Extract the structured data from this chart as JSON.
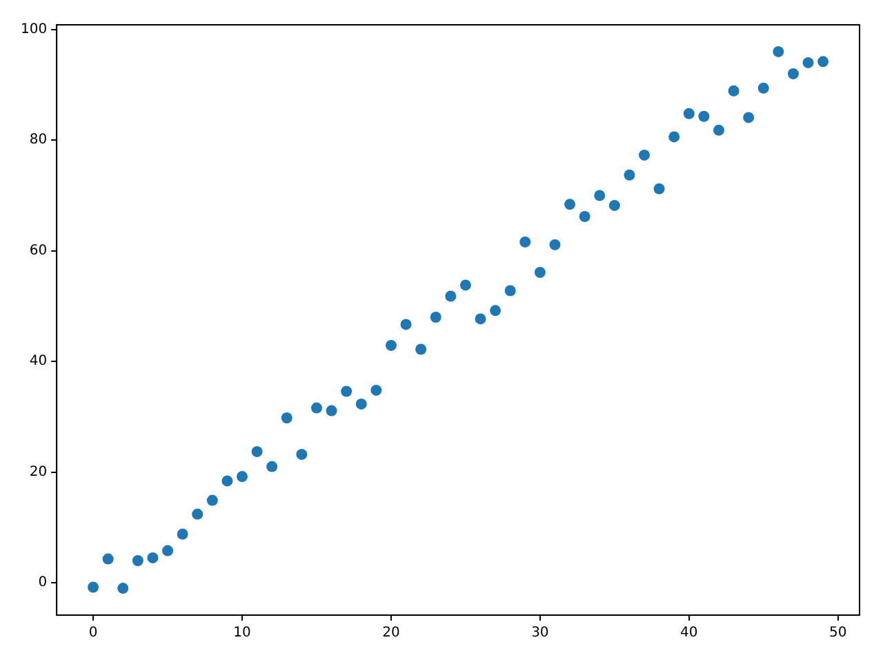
{
  "chart_data": {
    "type": "scatter",
    "x": [
      0,
      1,
      2,
      3,
      4,
      5,
      6,
      7,
      8,
      9,
      10,
      11,
      12,
      13,
      14,
      15,
      16,
      17,
      18,
      19,
      20,
      21,
      22,
      23,
      24,
      25,
      26,
      27,
      28,
      29,
      30,
      31,
      32,
      33,
      34,
      35,
      36,
      37,
      38,
      39,
      40,
      41,
      42,
      43,
      44,
      45,
      46,
      47,
      48,
      49
    ],
    "series": [
      {
        "color": "#1f77b4",
        "values": [
          -0.8,
          4.3,
          -1,
          4,
          4.5,
          5.8,
          8.8,
          12.4,
          14.9,
          18.4,
          19.2,
          23.7,
          21,
          29.8,
          23.2,
          31.6,
          31.1,
          34.6,
          32.3,
          34.8,
          42.9,
          46.7,
          42.2,
          48,
          51.8,
          53.8,
          47.7,
          49.2,
          52.8,
          61.6,
          56.1,
          61.1,
          68.4,
          66.2,
          70,
          68.2,
          73.7,
          77.3,
          71.2,
          80.6,
          84.8,
          84.3,
          81.8,
          88.9,
          84.1,
          89.4,
          96,
          92,
          94,
          94.2
        ]
      }
    ],
    "xlim": [
      -2.45,
      51.45
    ],
    "ylim": [
      -5.85,
      100.85
    ],
    "xticks": [
      0,
      10,
      20,
      30,
      40,
      50
    ],
    "yticks": [
      0,
      20,
      40,
      60,
      80,
      100
    ],
    "grid": false,
    "legend": false,
    "marker": "circle"
  }
}
